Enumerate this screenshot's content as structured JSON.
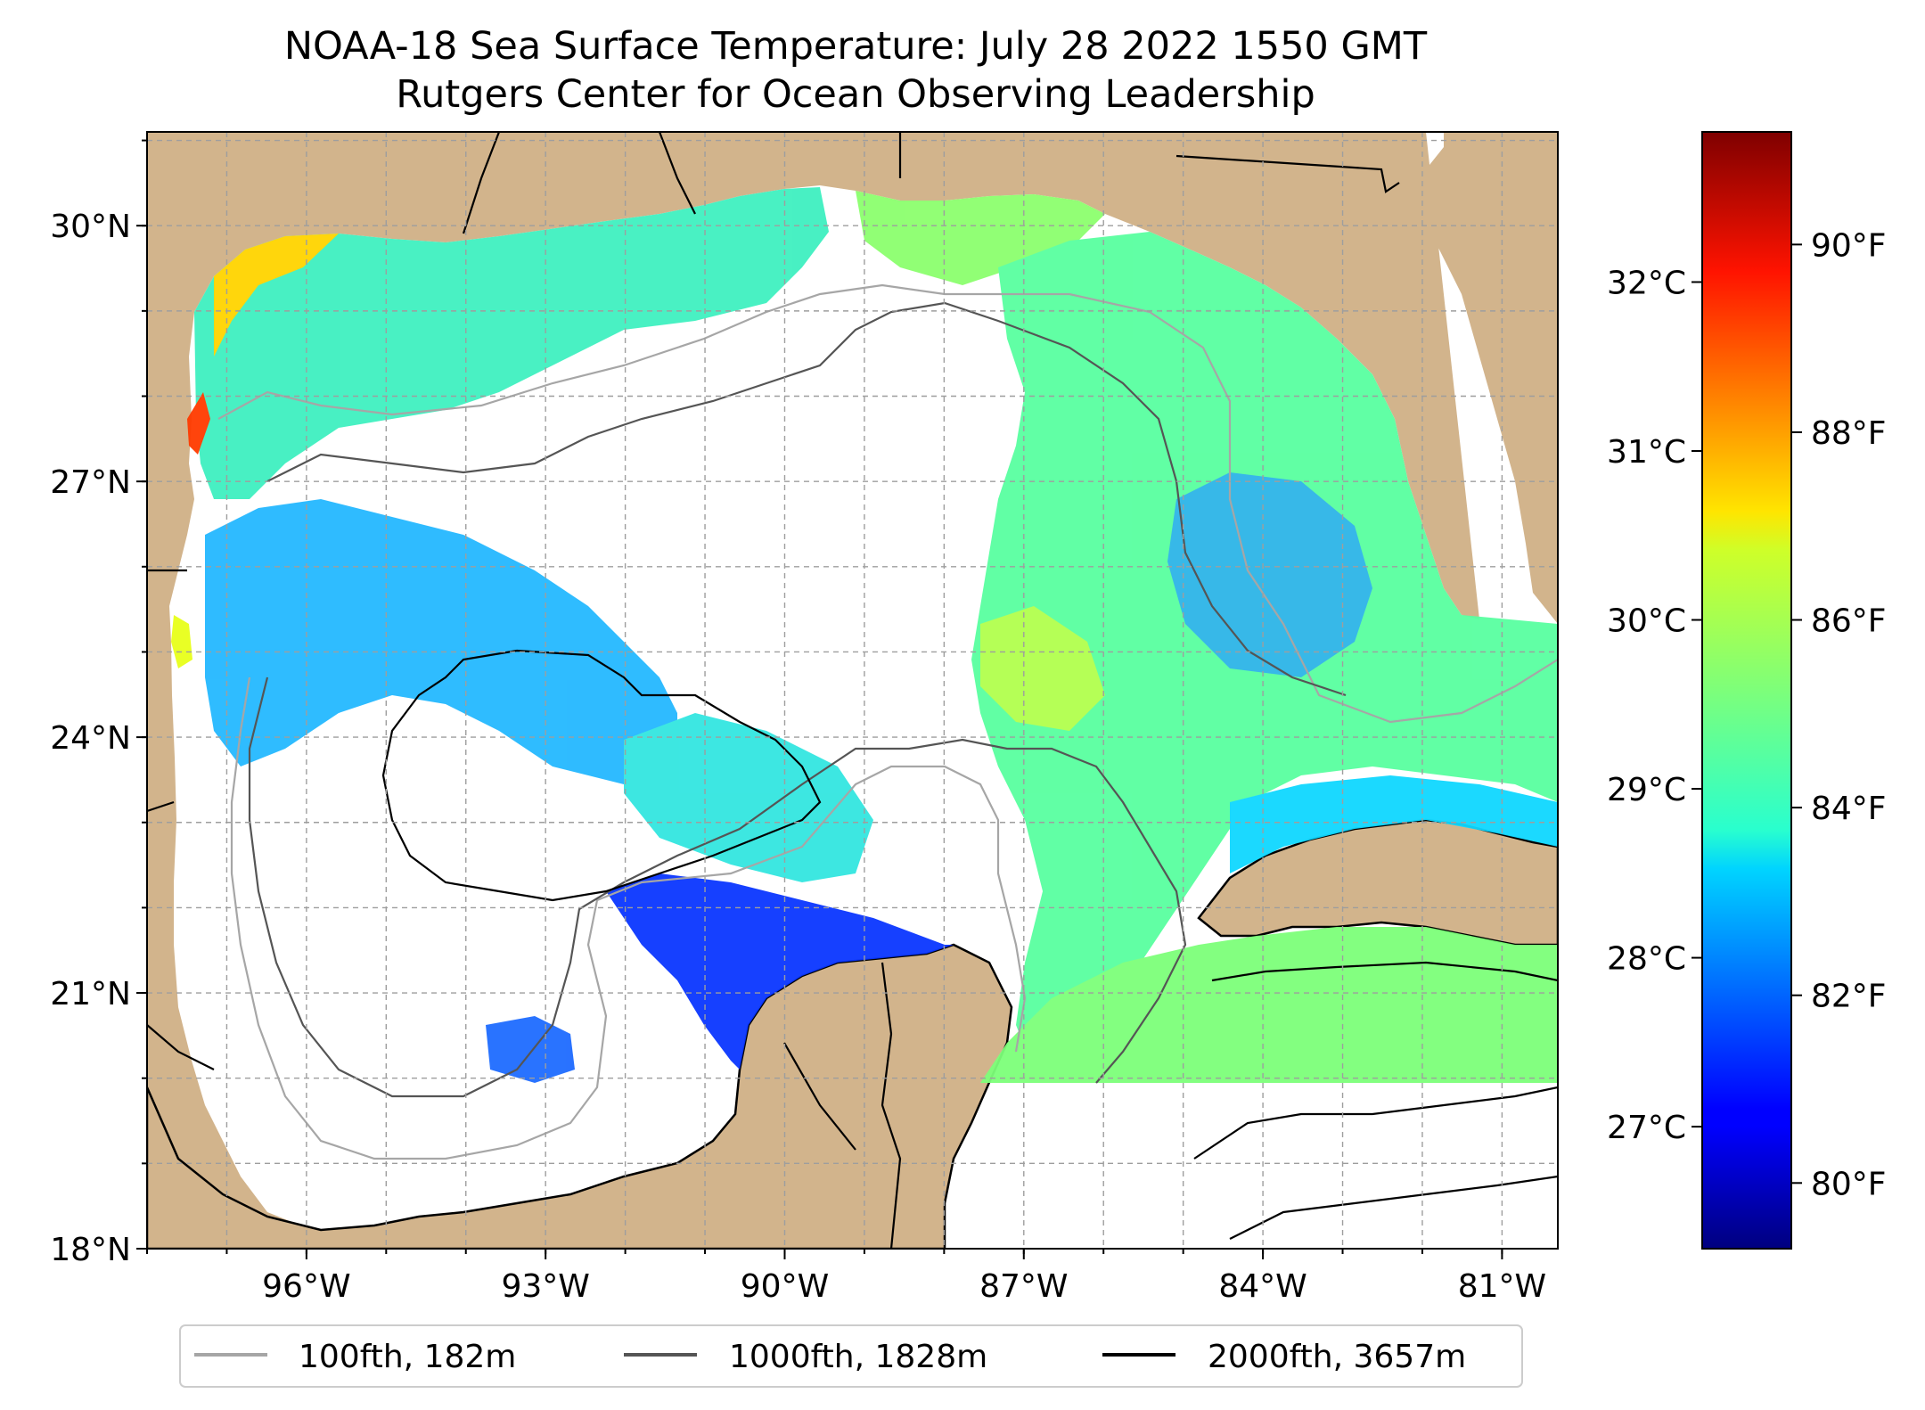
{
  "title": {
    "line1": "NOAA-18 Sea Surface Temperature: July 28 2022 1550 GMT",
    "line2": "Rutgers Center for Ocean Observing Leadership"
  },
  "map": {
    "lon_range": [
      -98,
      -80.3
    ],
    "lat_range": [
      18,
      31.1
    ],
    "lat_ticks": [
      {
        "value": 30,
        "label": "30°N"
      },
      {
        "value": 27,
        "label": "27°N"
      },
      {
        "value": 24,
        "label": "24°N"
      },
      {
        "value": 21,
        "label": "21°N"
      },
      {
        "value": 18,
        "label": "18°N"
      }
    ],
    "lon_ticks": [
      {
        "value": -96,
        "label": "96°W"
      },
      {
        "value": -93,
        "label": "93°W"
      },
      {
        "value": -90,
        "label": "90°W"
      },
      {
        "value": -87,
        "label": "87°W"
      },
      {
        "value": -84,
        "label": "84°W"
      },
      {
        "value": -81,
        "label": "81°W"
      }
    ],
    "gridlines": true,
    "colors": {
      "land": "#d2b48c",
      "ocean_nodata": "#ffffff",
      "coast": "#000000",
      "grid": "#9e9e9e"
    }
  },
  "colorbar": {
    "colormap": "jet",
    "range_f": [
      79.3,
      91.2
    ],
    "celsius_ticks": [
      {
        "value": 32,
        "label": "32°C"
      },
      {
        "value": 31,
        "label": "31°C"
      },
      {
        "value": 30,
        "label": "30°C"
      },
      {
        "value": 29,
        "label": "29°C"
      },
      {
        "value": 28,
        "label": "28°C"
      },
      {
        "value": 27,
        "label": "27°C"
      }
    ],
    "fahrenheit_ticks": [
      {
        "value": 90,
        "label": "90°F"
      },
      {
        "value": 88,
        "label": "88°F"
      },
      {
        "value": 86,
        "label": "86°F"
      },
      {
        "value": 84,
        "label": "84°F"
      },
      {
        "value": 82,
        "label": "82°F"
      },
      {
        "value": 80,
        "label": "80°F"
      }
    ]
  },
  "legend": {
    "position": "bottom-center",
    "entries": [
      {
        "label": "100fth, 182m",
        "color": "#a6a6a6"
      },
      {
        "label": "1000fth, 1828m",
        "color": "#555555"
      },
      {
        "label": "2000fth, 3657m",
        "color": "#000000"
      }
    ]
  }
}
